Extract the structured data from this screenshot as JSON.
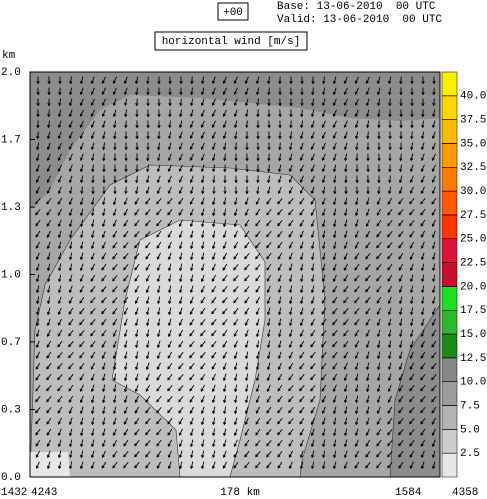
{
  "header": {
    "forecast": "+00",
    "base": "Base: 13-06-2010  00 UTC",
    "valid": "Valid: 13-06-2010  00 UTC"
  },
  "chart_data": {
    "type": "cross-section",
    "title": "horizontal wind [m/s]",
    "y_label": "km",
    "ylim": [
      0,
      2
    ],
    "yticks": [
      {
        "value": 0,
        "label": "0.0"
      },
      {
        "value": 0.333,
        "label": "0.3"
      },
      {
        "value": 0.667,
        "label": "0.7"
      },
      {
        "value": 1,
        "label": "1.0"
      },
      {
        "value": 1.333,
        "label": "1.3"
      },
      {
        "value": 1.667,
        "label": "1.7"
      },
      {
        "value": 2,
        "label": "2.0"
      }
    ],
    "x_labels": [
      "1432",
      "4243",
      "178 km",
      "1584",
      "4358"
    ],
    "colorbar": {
      "clim": [
        0,
        42.5
      ],
      "ticks": [
        2.5,
        {
          "value": 5,
          "label": "5.0"
        },
        7.5,
        {
          "value": 10,
          "label": "10.0"
        },
        12.5,
        {
          "value": 15,
          "label": "15.0"
        },
        17.5,
        {
          "value": 20,
          "label": "20.0"
        },
        22.5,
        {
          "value": 25,
          "label": "25.0"
        },
        27.5,
        {
          "value": 30,
          "label": "30.0"
        },
        32.5,
        {
          "value": 35,
          "label": "35.0"
        },
        37.5,
        {
          "value": 40,
          "label": "40.0"
        }
      ],
      "colors": [
        "#e6e6e6",
        "#cccccc",
        "#b4b4b4",
        "#9c9c9c",
        "#888888",
        "#1a8c1a",
        "#2fb82f",
        "#22dd22",
        "#c8102e",
        "#dc143c",
        "#ff3300",
        "#ff5a00",
        "#ff7a00",
        "#ff9a00",
        "#ffb800",
        "#ffd400",
        "#ffee00"
      ]
    }
  }
}
